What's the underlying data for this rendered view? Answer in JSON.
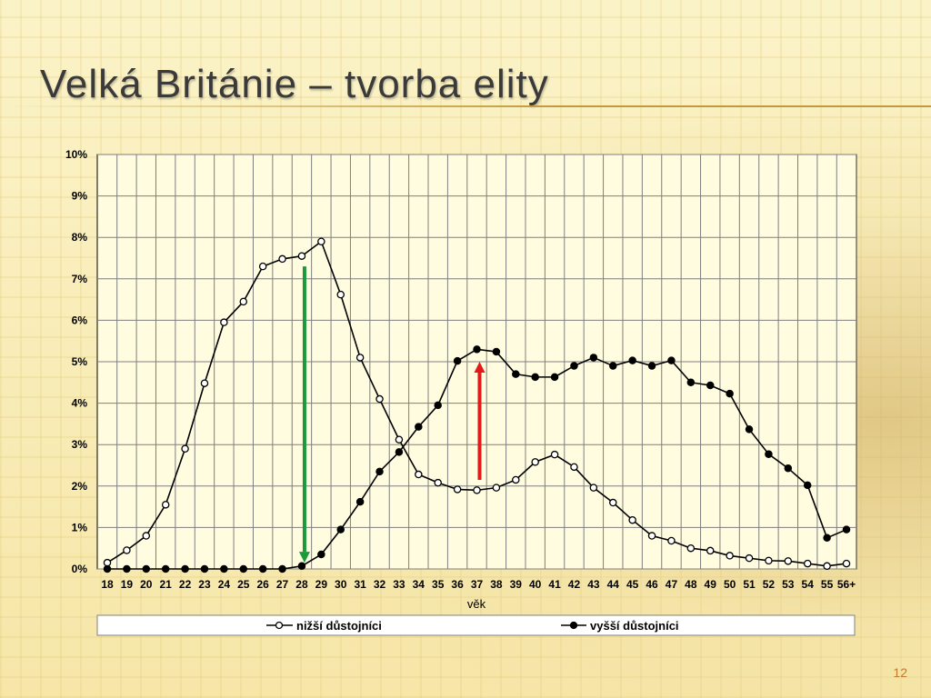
{
  "slide": {
    "title": "Velká Británie – tvorba elity",
    "page_number": "12"
  },
  "colors": {
    "green_arrow": "#1a9a3a",
    "red_arrow": "#e31a1a",
    "series_line": "#000000",
    "title_rule": "#c19a3e",
    "page_number": "#c47a2c"
  },
  "chart_data": {
    "type": "line",
    "title": "",
    "xlabel": "věk",
    "ylabel": "",
    "ylim": [
      0,
      10
    ],
    "y_unit": "%",
    "y_ticks": [
      "0%",
      "1%",
      "2%",
      "3%",
      "4%",
      "5%",
      "6%",
      "7%",
      "8%",
      "9%",
      "10%"
    ],
    "grid": true,
    "legend_position": "bottom",
    "categories": [
      "18",
      "19",
      "20",
      "21",
      "22",
      "23",
      "24",
      "25",
      "26",
      "27",
      "28",
      "29",
      "30",
      "31",
      "32",
      "33",
      "34",
      "35",
      "36",
      "37",
      "38",
      "39",
      "40",
      "41",
      "42",
      "43",
      "44",
      "45",
      "46",
      "47",
      "48",
      "49",
      "50",
      "51",
      "52",
      "53",
      "54",
      "55",
      "56+"
    ],
    "series": [
      {
        "name": "nižší důstojníci",
        "marker": "open-circle",
        "values": [
          0.15,
          0.45,
          0.8,
          1.55,
          2.9,
          4.48,
          5.95,
          6.45,
          7.3,
          7.48,
          7.55,
          7.9,
          6.62,
          5.1,
          4.1,
          3.12,
          2.28,
          2.08,
          1.92,
          1.9,
          1.96,
          2.15,
          2.58,
          2.76,
          2.46,
          1.96,
          1.6,
          1.18,
          0.8,
          0.68,
          0.5,
          0.44,
          0.32,
          0.26,
          0.2,
          0.19,
          0.13,
          0.07,
          0.13
        ]
      },
      {
        "name": "vyšší důstojníci",
        "marker": "filled-circle",
        "values": [
          0,
          0,
          0,
          0,
          0,
          0,
          0,
          0,
          0,
          0,
          0.07,
          0.35,
          0.95,
          1.62,
          2.35,
          2.82,
          3.43,
          3.95,
          5.02,
          5.3,
          5.24,
          4.7,
          4.63,
          4.63,
          4.9,
          5.1,
          4.9,
          5.03,
          4.9,
          5.03,
          4.5,
          4.43,
          4.23,
          3.37,
          2.77,
          2.43,
          2.02,
          0.75,
          0.95
        ]
      }
    ],
    "annotations": [
      {
        "type": "arrow",
        "direction": "down",
        "color": "green",
        "at_category": "28",
        "from_value": 7.3,
        "to_value": 0.15
      },
      {
        "type": "arrow",
        "direction": "up",
        "color": "red",
        "at_category": "37",
        "from_value": 2.15,
        "to_value": 5.0
      }
    ]
  }
}
